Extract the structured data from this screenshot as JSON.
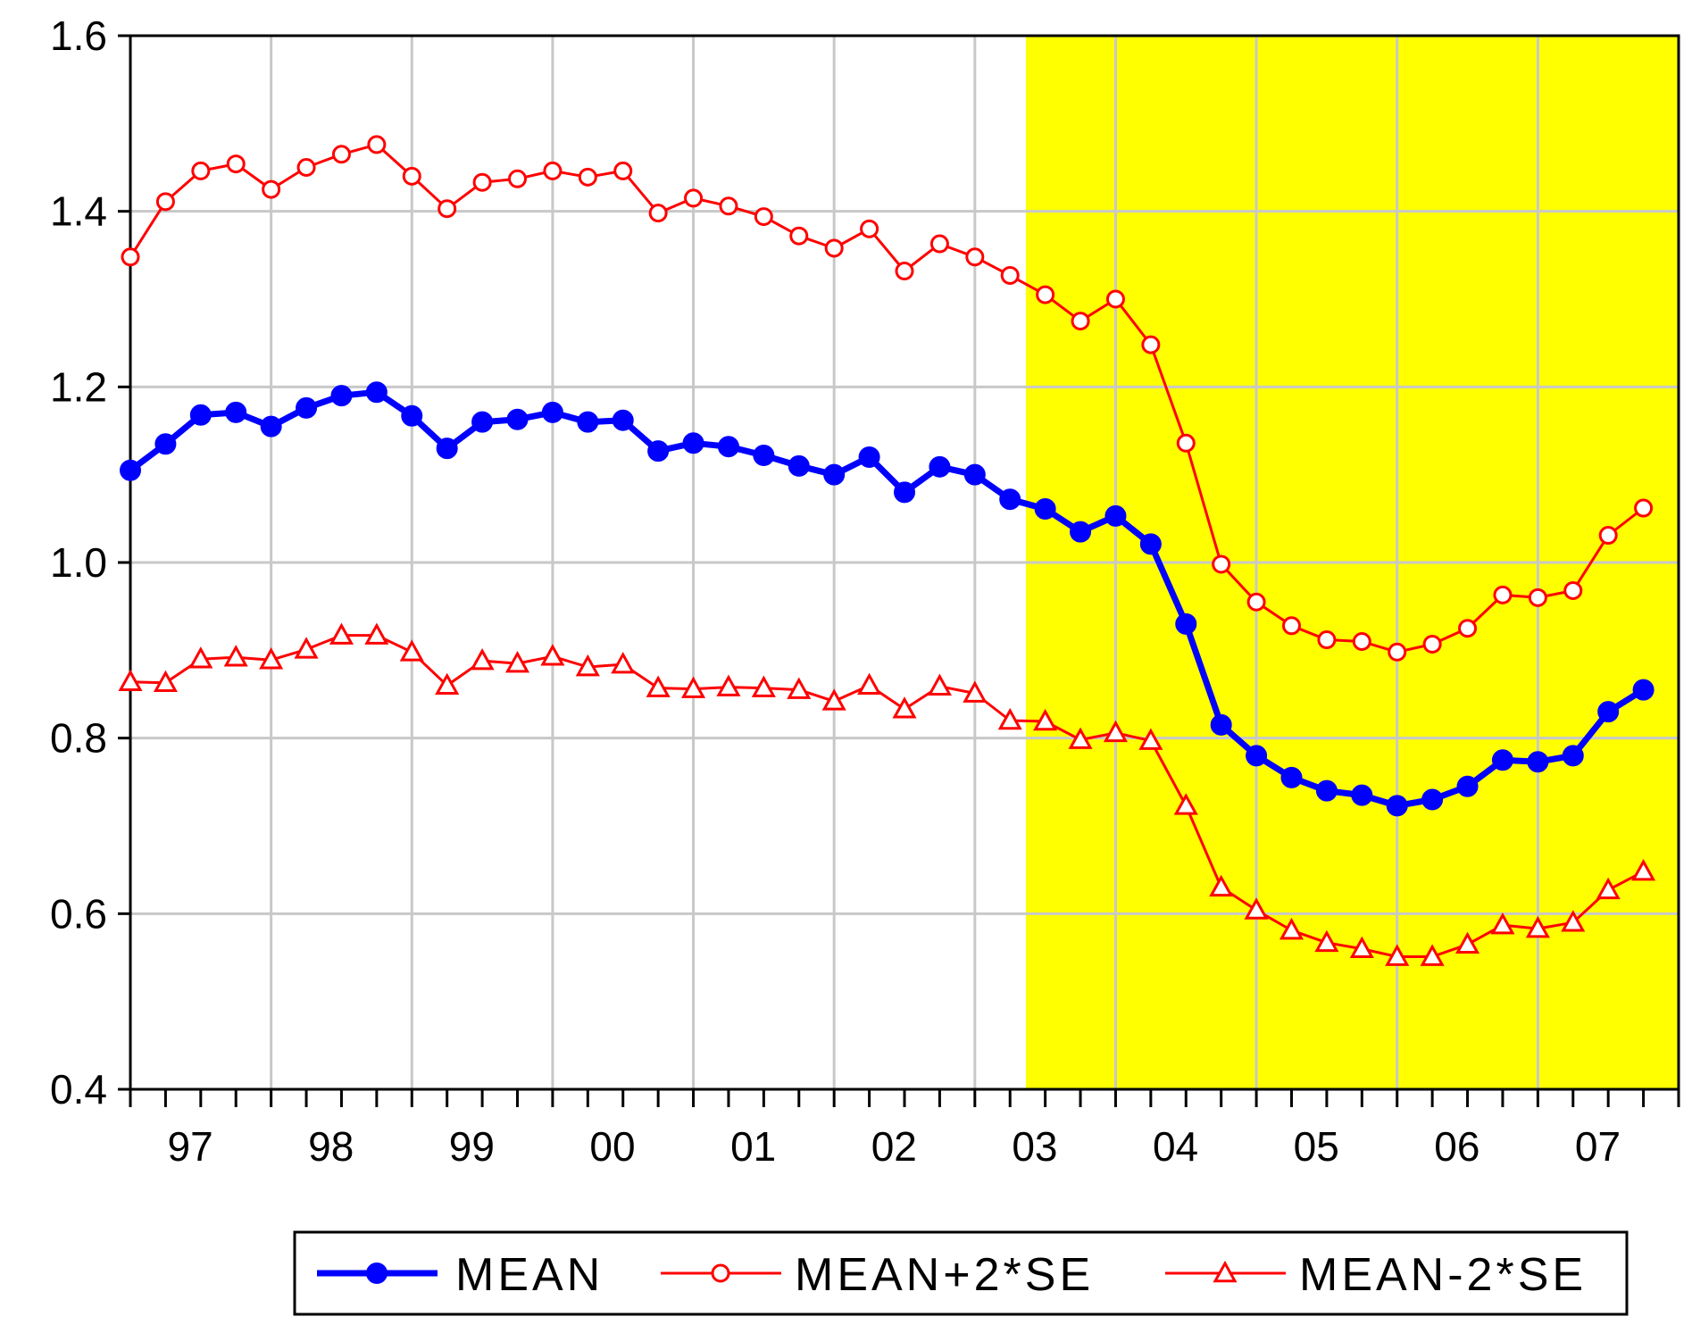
{
  "chart_data": {
    "type": "line",
    "title": "",
    "xlabel": "",
    "ylabel": "",
    "ylim": [
      0.4,
      1.6
    ],
    "yticks": [
      "0.4",
      "0.6",
      "0.8",
      "1.0",
      "1.2",
      "1.4",
      "1.6"
    ],
    "ytick_values": [
      0.4,
      0.6,
      0.8,
      1.0,
      1.2,
      1.4,
      1.6
    ],
    "xtick_labels": [
      "97",
      "98",
      "99",
      "00",
      "01",
      "02",
      "03",
      "04",
      "05",
      "06",
      "07"
    ],
    "grid": true,
    "legend_position": "bottom",
    "shaded_region": {
      "start_index": 26,
      "end_index": 44,
      "color": "#ffff00"
    },
    "colors": {
      "mean": "#0000ff",
      "bands": "#ff0000",
      "grid": "#c8c8c8"
    },
    "series": [
      {
        "name": "MEAN",
        "marker": "filled-circle",
        "values": [
          1.105,
          1.135,
          1.168,
          1.171,
          1.155,
          1.176,
          1.19,
          1.194,
          1.167,
          1.13,
          1.16,
          1.163,
          1.171,
          1.16,
          1.162,
          1.127,
          1.136,
          1.132,
          1.122,
          1.11,
          1.1,
          1.12,
          1.08,
          1.109,
          1.1,
          1.072,
          1.061,
          1.035,
          1.053,
          1.021,
          0.93,
          0.815,
          0.78,
          0.755,
          0.74,
          0.735,
          0.723,
          0.73,
          0.745,
          0.775,
          0.773,
          0.78,
          0.83,
          0.855
        ]
      },
      {
        "name": "MEAN+2*SE",
        "marker": "hollow-circle",
        "values": [
          1.348,
          1.411,
          1.446,
          1.454,
          1.425,
          1.45,
          1.465,
          1.476,
          1.44,
          1.403,
          1.433,
          1.437,
          1.446,
          1.439,
          1.446,
          1.398,
          1.415,
          1.406,
          1.394,
          1.372,
          1.358,
          1.38,
          1.332,
          1.363,
          1.348,
          1.327,
          1.305,
          1.275,
          1.3,
          1.248,
          1.136,
          0.998,
          0.955,
          0.928,
          0.912,
          0.91,
          0.898,
          0.907,
          0.925,
          0.963,
          0.96,
          0.968,
          1.031,
          1.062
        ]
      },
      {
        "name": "MEAN-2*SE",
        "marker": "hollow-triangle",
        "values": [
          0.864,
          0.863,
          0.89,
          0.892,
          0.889,
          0.901,
          0.917,
          0.917,
          0.898,
          0.86,
          0.888,
          0.885,
          0.893,
          0.881,
          0.884,
          0.857,
          0.856,
          0.858,
          0.857,
          0.855,
          0.842,
          0.86,
          0.833,
          0.859,
          0.851,
          0.82,
          0.819,
          0.798,
          0.806,
          0.797,
          0.723,
          0.63,
          0.604,
          0.581,
          0.567,
          0.56,
          0.551,
          0.551,
          0.565,
          0.587,
          0.583,
          0.59,
          0.627,
          0.648
        ]
      }
    ]
  }
}
